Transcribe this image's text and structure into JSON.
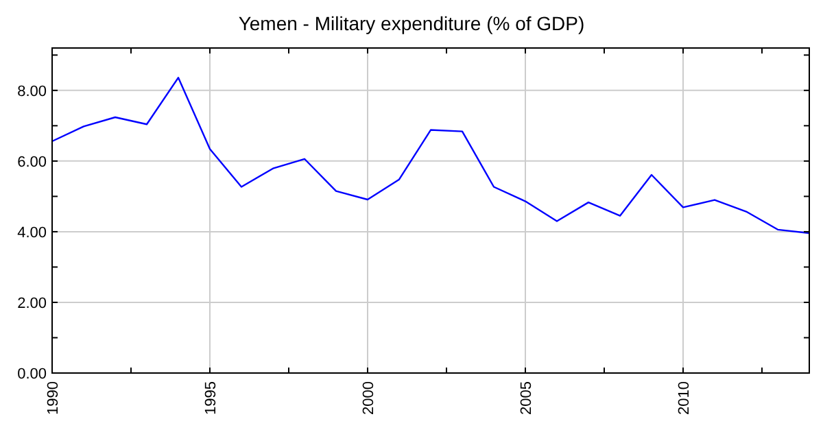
{
  "chart_data": {
    "type": "line",
    "title": "Yemen - Military expenditure (% of GDP)",
    "x": [
      1990,
      1991,
      1992,
      1993,
      1994,
      1995,
      1996,
      1997,
      1998,
      1999,
      2000,
      2001,
      2002,
      2003,
      2004,
      2005,
      2006,
      2007,
      2008,
      2009,
      2010,
      2011,
      2012,
      2013,
      2014
    ],
    "series": [
      {
        "color": "#0000ff",
        "values": [
          6.56,
          6.98,
          7.24,
          7.04,
          8.36,
          6.34,
          5.27,
          5.79,
          6.06,
          5.15,
          4.91,
          5.48,
          6.88,
          6.84,
          5.27,
          4.86,
          4.3,
          4.83,
          4.45,
          5.61,
          4.69,
          4.9,
          4.57,
          4.06,
          3.96
        ]
      }
    ],
    "xlim": [
      1990,
      2014
    ],
    "ylim": [
      0,
      9.2
    ],
    "xticks": [
      1990,
      {
        "value": 1992.5,
        "label": null
      },
      1995,
      {
        "value": 1997.5,
        "label": null
      },
      2000,
      {
        "value": 2002.5,
        "label": null
      },
      2005,
      {
        "value": 2007.5,
        "label": null
      },
      2010,
      {
        "value": 2012.5,
        "label": null
      }
    ],
    "yticks": [
      {
        "value": 0,
        "label": "0.00"
      },
      {
        "value": 1,
        "label": null
      },
      {
        "value": 2,
        "label": "2.00"
      },
      {
        "value": 3,
        "label": null
      },
      {
        "value": 4,
        "label": "4.00"
      },
      {
        "value": 5,
        "label": null
      },
      {
        "value": 6,
        "label": "6.00"
      },
      {
        "value": 7,
        "label": null
      },
      {
        "value": 8,
        "label": "8.00"
      },
      {
        "value": 9,
        "label": null
      }
    ],
    "grid": true,
    "marker": "none",
    "line_style": "solid"
  }
}
